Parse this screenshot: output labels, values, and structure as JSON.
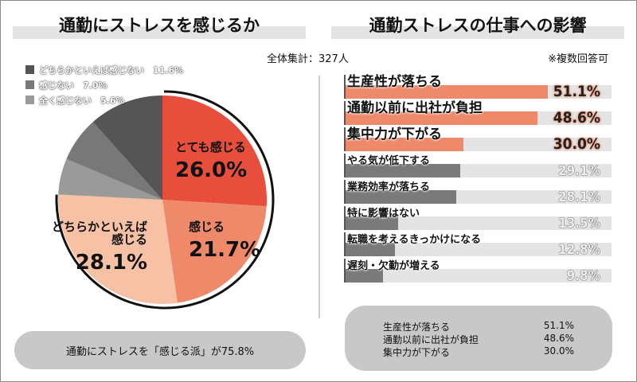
{
  "left_title": "通勤にストレスを感じるか",
  "right_title": "通勤ストレスの仕事への影響",
  "total": "全体集計：327人",
  "note": "※複数回答可",
  "colors": {
    "very": "#e84e3c",
    "feel": "#ee8a6a",
    "somewhat": "#f6c1a4",
    "not_at_all": "#9a9a9a",
    "not": "#787878",
    "somewhat_not": "#555555",
    "bar_top": "#ee8a6a",
    "bar_rest": "#7a7a7a",
    "track": "#e4e4e4"
  },
  "chart_data": [
    {
      "type": "pie",
      "title": "通勤にストレスを感じるか",
      "slices": [
        {
          "label": "とても感じる",
          "value": 26.0,
          "display": "26.0%",
          "color": "#e84e3c"
        },
        {
          "label": "感じる",
          "value": 21.7,
          "display": "21.7%",
          "color": "#ee8a6a"
        },
        {
          "label": "どちらかといえば感じる",
          "label_lines": [
            "どちらかといえば",
            "感じる"
          ],
          "value": 28.1,
          "display": "28.1%",
          "color": "#f6c1a4"
        },
        {
          "label": "全く感じない",
          "value": 5.6,
          "display": "5.6%",
          "color": "#9a9a9a"
        },
        {
          "label": "感じない",
          "value": 7.0,
          "display": "7.0%",
          "color": "#787878"
        },
        {
          "label": "どちらかといえば感じない",
          "value": 11.6,
          "display": "11.6%",
          "color": "#555555"
        }
      ],
      "legend": [
        {
          "label": "どちらかといえば感じない",
          "value": "11.6%",
          "color": "#555555"
        },
        {
          "label": "感じない",
          "value": "7.0%",
          "color": "#787878"
        },
        {
          "label": "全く感じない",
          "value": "5.6%",
          "color": "#9a9a9a"
        }
      ],
      "legend_position": "top-left"
    },
    {
      "type": "bar",
      "orientation": "horizontal",
      "title": "通勤ストレスの仕事への影響",
      "categories": [
        "生産性が落ちる",
        "通勤以前に出社が負担",
        "集中力が下がる",
        "やる気が低下する",
        "業務効率が落ちる",
        "特に影響はない",
        "転職を考えるきっかけになる",
        "遅刻・欠勤が増える"
      ],
      "values": [
        51.1,
        48.6,
        30.0,
        29.1,
        28.1,
        13.5,
        12.8,
        9.8
      ],
      "labels": [
        "51.1%",
        "48.6%",
        "30.0%",
        "29.1%",
        "28.1%",
        "13.5%",
        "12.8%",
        "9.8%"
      ],
      "highlighted_top": 3
    }
  ],
  "summary_left": "通勤にストレスを「感じる派」が75.8%",
  "summary_right": [
    {
      "label": "生産性が落ちる",
      "value": "51.1%"
    },
    {
      "label": "通勤以前に出社が負担",
      "value": "48.6%"
    },
    {
      "label": "集中力が下がる",
      "value": "30.0%"
    }
  ]
}
